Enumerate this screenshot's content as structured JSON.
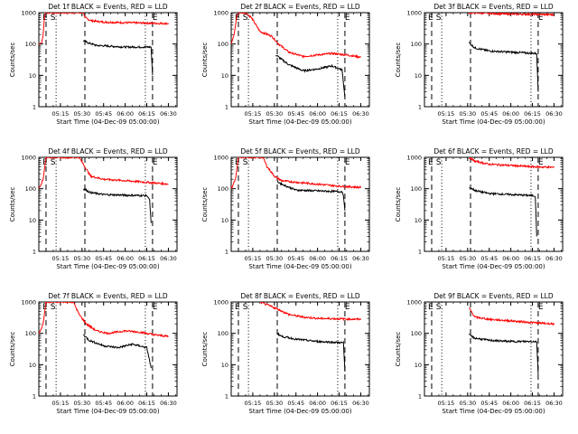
{
  "chart_data": [
    {
      "type": "line",
      "title": "Det 1f BLACK = Events, RED = LLD",
      "xlabel": "Start Time (04-Dec-09 05:00:00)",
      "ylabel": "Counts/sec",
      "yscale": "log",
      "ylim": [
        1,
        1000
      ],
      "x_tick_labels": [
        "05:15",
        "05:30",
        "05:45",
        "06:00",
        "06:15",
        "06:30"
      ],
      "y_tick_labels": [
        "1",
        "10",
        "100",
        "1000"
      ],
      "markers": [
        {
          "label": "E",
          "x": "05:05"
        },
        {
          "label": "S",
          "x": "05:08"
        },
        {
          "label": "E",
          "x": "06:19"
        }
      ],
      "series": [
        {
          "color": "#ff0000",
          "points": [
            [
              "05:00",
              100
            ],
            [
              "05:02",
              110
            ],
            [
              "05:03",
              200
            ],
            [
              "05:04",
              800
            ],
            [
              "05:05",
              1000
            ],
            [
              "05:09",
              1000
            ],
            [
              "05:30",
              1000
            ],
            [
              "05:31",
              1000
            ],
            [
              "05:32",
              700
            ],
            [
              "05:36",
              560
            ],
            [
              "05:45",
              500
            ],
            [
              "06:00",
              480
            ],
            [
              "06:20",
              460
            ],
            [
              "06:30",
              450
            ]
          ]
        },
        {
          "color": "#000000",
          "points": [
            [
              "05:31",
              130
            ],
            [
              "05:34",
              110
            ],
            [
              "05:40",
              90
            ],
            [
              "06:00",
              80
            ],
            [
              "06:18",
              80
            ],
            [
              "06:19",
              10
            ]
          ]
        }
      ]
    },
    {
      "type": "line",
      "title": "Det 2f BLACK = Events, RED = LLD",
      "xlabel": "Start Time (04-Dec-09 05:00:00)",
      "ylabel": "Counts/sec",
      "yscale": "log",
      "ylim": [
        1,
        1000
      ],
      "x_tick_labels": [
        "05:15",
        "05:30",
        "05:45",
        "06:00",
        "06:15",
        "06:30"
      ],
      "y_tick_labels": [
        "1",
        "10",
        "100",
        "1000"
      ],
      "markers": [
        {
          "label": "E",
          "x": "05:05"
        },
        {
          "label": "S",
          "x": "05:08"
        },
        {
          "label": "E",
          "x": "06:19"
        }
      ],
      "series": [
        {
          "color": "#ff0000",
          "points": [
            [
              "05:00",
              100
            ],
            [
              "05:02",
              200
            ],
            [
              "05:04",
              800
            ],
            [
              "05:05",
              1000
            ],
            [
              "05:10",
              1000
            ],
            [
              "05:14",
              700
            ],
            [
              "05:20",
              250
            ],
            [
              "05:28",
              180
            ],
            [
              "05:33",
              100
            ],
            [
              "05:40",
              55
            ],
            [
              "05:50",
              40
            ],
            [
              "06:00",
              45
            ],
            [
              "06:10",
              50
            ],
            [
              "06:20",
              45
            ],
            [
              "06:30",
              38
            ]
          ]
        },
        {
          "color": "#000000",
          "points": [
            [
              "05:31",
              45
            ],
            [
              "05:34",
              35
            ],
            [
              "05:40",
              22
            ],
            [
              "05:50",
              14
            ],
            [
              "06:00",
              16
            ],
            [
              "06:10",
              20
            ],
            [
              "06:17",
              15
            ],
            [
              "06:19",
              2
            ]
          ]
        }
      ]
    },
    {
      "type": "line",
      "title": "Det 3f BLACK = Events, RED = LLD",
      "xlabel": "Start Time (04-Dec-09 05:00:00)",
      "ylabel": "Counts/sec",
      "yscale": "log",
      "ylim": [
        1,
        1000
      ],
      "x_tick_labels": [
        "05:15",
        "05:30",
        "05:45",
        "06:00",
        "06:15",
        "06:30"
      ],
      "y_tick_labels": [
        "1",
        "10",
        "100",
        "1000"
      ],
      "markers": [
        {
          "label": "E",
          "x": "05:05"
        },
        {
          "label": "S",
          "x": "05:08"
        },
        {
          "label": "E",
          "x": "06:19"
        }
      ],
      "series": [
        {
          "color": "#ff0000",
          "points": [
            [
              "05:31",
              1000
            ],
            [
              "05:45",
              950
            ],
            [
              "06:00",
              900
            ],
            [
              "06:20",
              880
            ],
            [
              "06:30",
              860
            ]
          ]
        },
        {
          "color": "#000000",
          "points": [
            [
              "05:31",
              110
            ],
            [
              "05:35",
              75
            ],
            [
              "05:45",
              60
            ],
            [
              "06:00",
              55
            ],
            [
              "06:18",
              50
            ],
            [
              "06:19",
              3
            ]
          ]
        }
      ]
    },
    {
      "type": "line",
      "title": "Det 4f BLACK = Events, RED = LLD",
      "xlabel": "Start Time (04-Dec-09 05:00:00)",
      "ylabel": "Counts/sec",
      "yscale": "log",
      "ylim": [
        1,
        1000
      ],
      "x_tick_labels": [
        "05:15",
        "05:30",
        "05:45",
        "06:00",
        "06:15",
        "06:30"
      ],
      "y_tick_labels": [
        "1",
        "10",
        "100",
        "1000"
      ],
      "markers": [
        {
          "label": "E",
          "x": "05:05"
        },
        {
          "label": "S",
          "x": "05:08"
        },
        {
          "label": "E",
          "x": "06:19"
        }
      ],
      "series": [
        {
          "color": "#ff0000",
          "points": [
            [
              "05:00",
              100
            ],
            [
              "05:03",
              200
            ],
            [
              "05:05",
              1000
            ],
            [
              "05:09",
              1000
            ],
            [
              "05:28",
              1000
            ],
            [
              "05:32",
              500
            ],
            [
              "05:36",
              250
            ],
            [
              "05:45",
              200
            ],
            [
              "06:00",
              180
            ],
            [
              "06:15",
              160
            ],
            [
              "06:30",
              140
            ]
          ]
        },
        {
          "color": "#000000",
          "points": [
            [
              "05:31",
              100
            ],
            [
              "05:36",
              75
            ],
            [
              "05:45",
              65
            ],
            [
              "06:00",
              62
            ],
            [
              "06:15",
              60
            ],
            [
              "06:17",
              45
            ],
            [
              "06:18",
              8
            ]
          ]
        }
      ]
    },
    {
      "type": "line",
      "title": "Det 5f BLACK = Events, RED = LLD",
      "xlabel": "Start Time (04-Dec-09 05:00:00)",
      "ylabel": "Counts/sec",
      "yscale": "log",
      "ylim": [
        1,
        1000
      ],
      "x_tick_labels": [
        "05:15",
        "05:30",
        "05:45",
        "06:00",
        "06:15",
        "06:30"
      ],
      "y_tick_labels": [
        "1",
        "10",
        "100",
        "1000"
      ],
      "markers": [
        {
          "label": "E",
          "x": "05:05"
        },
        {
          "label": "S",
          "x": "05:08"
        },
        {
          "label": "E",
          "x": "06:19"
        }
      ],
      "series": [
        {
          "color": "#ff0000",
          "points": [
            [
              "05:00",
              100
            ],
            [
              "05:03",
              200
            ],
            [
              "05:05",
              1000
            ],
            [
              "05:09",
              1000
            ],
            [
              "05:22",
              1000
            ],
            [
              "05:25",
              500
            ],
            [
              "05:30",
              250
            ],
            [
              "05:35",
              180
            ],
            [
              "05:45",
              160
            ],
            [
              "06:00",
              140
            ],
            [
              "06:15",
              120
            ],
            [
              "06:30",
              110
            ]
          ]
        },
        {
          "color": "#000000",
          "points": [
            [
              "05:32",
              170
            ],
            [
              "05:35",
              140
            ],
            [
              "05:45",
              90
            ],
            [
              "06:00",
              85
            ],
            [
              "06:17",
              80
            ],
            [
              "06:18",
              60
            ],
            [
              "06:19",
              20
            ]
          ]
        }
      ]
    },
    {
      "type": "line",
      "title": "Det 6f BLACK = Events, RED = LLD",
      "xlabel": "Start Time (04-Dec-09 05:00:00)",
      "ylabel": "Counts/sec",
      "yscale": "log",
      "ylim": [
        1,
        1000
      ],
      "x_tick_labels": [
        "05:15",
        "05:30",
        "05:45",
        "06:00",
        "06:15",
        "06:30"
      ],
      "y_tick_labels": [
        "1",
        "10",
        "100",
        "1000"
      ],
      "markers": [
        {
          "label": "E",
          "x": "05:05"
        },
        {
          "label": "S",
          "x": "05:08"
        },
        {
          "label": "E",
          "x": "06:19"
        }
      ],
      "series": [
        {
          "color": "#ff0000",
          "points": [
            [
              "05:31",
              1000
            ],
            [
              "05:35",
              750
            ],
            [
              "05:45",
              600
            ],
            [
              "06:00",
              550
            ],
            [
              "06:15",
              500
            ],
            [
              "06:30",
              480
            ]
          ]
        },
        {
          "color": "#000000",
          "points": [
            [
              "05:31",
              110
            ],
            [
              "05:36",
              85
            ],
            [
              "05:45",
              70
            ],
            [
              "06:00",
              65
            ],
            [
              "06:15",
              60
            ],
            [
              "06:17",
              55
            ],
            [
              "06:18",
              3
            ]
          ]
        }
      ]
    },
    {
      "type": "line",
      "title": "Det 7f BLACK = Events, RED = LLD",
      "xlabel": "Start Time (04-Dec-09 05:00:00)",
      "ylabel": "Counts/sec",
      "yscale": "log",
      "ylim": [
        1,
        1000
      ],
      "x_tick_labels": [
        "05:15",
        "05:30",
        "05:45",
        "06:00",
        "06:15",
        "06:30"
      ],
      "y_tick_labels": [
        "1",
        "10",
        "100",
        "1000"
      ],
      "markers": [
        {
          "label": "E",
          "x": "05:05"
        },
        {
          "label": "S",
          "x": "05:08"
        },
        {
          "label": "E",
          "x": "06:19"
        }
      ],
      "series": [
        {
          "color": "#ff0000",
          "points": [
            [
              "05:00",
              100
            ],
            [
              "05:03",
              200
            ],
            [
              "05:05",
              1000
            ],
            [
              "05:09",
              1000
            ],
            [
              "05:24",
              1000
            ],
            [
              "05:28",
              400
            ],
            [
              "05:33",
              200
            ],
            [
              "05:40",
              120
            ],
            [
              "05:48",
              100
            ],
            [
              "06:00",
              120
            ],
            [
              "06:10",
              110
            ],
            [
              "06:20",
              90
            ],
            [
              "06:30",
              80
            ]
          ]
        },
        {
          "color": "#000000",
          "points": [
            [
              "05:31",
              90
            ],
            [
              "05:35",
              60
            ],
            [
              "05:45",
              40
            ],
            [
              "05:55",
              35
            ],
            [
              "06:05",
              45
            ],
            [
              "06:15",
              35
            ],
            [
              "06:18",
              8
            ]
          ]
        }
      ]
    },
    {
      "type": "line",
      "title": "Det 8f BLACK = Events, RED = LLD",
      "xlabel": "Start Time (04-Dec-09 05:00:00)",
      "ylabel": "Counts/sec",
      "yscale": "log",
      "ylim": [
        1,
        1000
      ],
      "x_tick_labels": [
        "05:15",
        "05:30",
        "05:45",
        "06:00",
        "06:15",
        "06:30"
      ],
      "y_tick_labels": [
        "1",
        "10",
        "100",
        "1000"
      ],
      "markers": [
        {
          "label": "E",
          "x": "05:05"
        },
        {
          "label": "S",
          "x": "05:08"
        },
        {
          "label": "E",
          "x": "06:19"
        }
      ],
      "series": [
        {
          "color": "#ff0000",
          "points": [
            [
              "05:20",
              1000
            ],
            [
              "05:32",
              600
            ],
            [
              "05:40",
              400
            ],
            [
              "05:50",
              330
            ],
            [
              "06:00",
              300
            ],
            [
              "06:15",
              290
            ],
            [
              "06:30",
              280
            ]
          ]
        },
        {
          "color": "#000000",
          "points": [
            [
              "05:32",
              100
            ],
            [
              "05:35",
              80
            ],
            [
              "05:45",
              65
            ],
            [
              "06:00",
              55
            ],
            [
              "06:18",
              50
            ],
            [
              "06:19",
              6
            ]
          ]
        }
      ]
    },
    {
      "type": "line",
      "title": "Det 9f BLACK = Events, RED = LLD",
      "xlabel": "Start Time (04-Dec-09 05:00:00)",
      "ylabel": "Counts/sec",
      "yscale": "log",
      "ylim": [
        1,
        1000
      ],
      "x_tick_labels": [
        "05:15",
        "05:30",
        "05:45",
        "06:00",
        "06:15",
        "06:30"
      ],
      "y_tick_labels": [
        "1",
        "10",
        "100",
        "1000"
      ],
      "markers": [
        {
          "label": "E",
          "x": "05:05"
        },
        {
          "label": "S",
          "x": "05:08"
        },
        {
          "label": "E",
          "x": "06:19"
        }
      ],
      "series": [
        {
          "color": "#ff0000",
          "points": [
            [
              "05:31",
              650
            ],
            [
              "05:35",
              330
            ],
            [
              "05:45",
              280
            ],
            [
              "06:00",
              250
            ],
            [
              "06:15",
              220
            ],
            [
              "06:30",
              200
            ]
          ]
        },
        {
          "color": "#000000",
          "points": [
            [
              "05:31",
              90
            ],
            [
              "05:35",
              70
            ],
            [
              "05:45",
              60
            ],
            [
              "06:00",
              55
            ],
            [
              "06:18",
              55
            ],
            [
              "06:19",
              5
            ]
          ]
        }
      ]
    }
  ]
}
